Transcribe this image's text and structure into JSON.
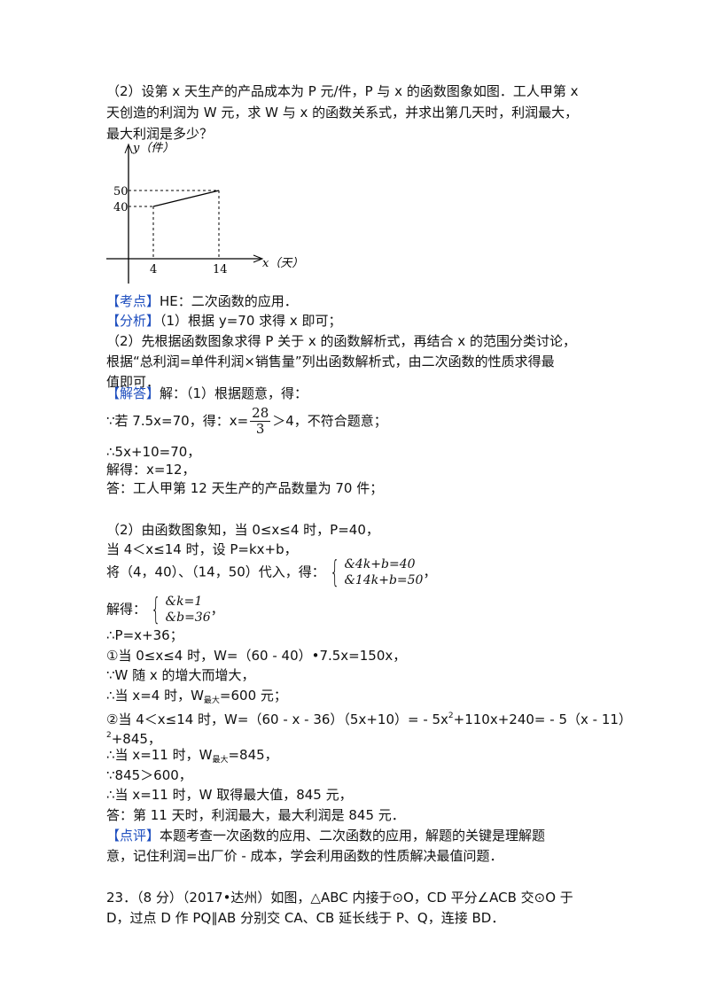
{
  "question": {
    "lines": [
      [
        "（2）设第 x 天生产的产品成本为 P 元/件，P 与 x 的函数图象如图．工人甲第 x"
      ],
      [
        "天创造的利润为 W 元，求 W 与 x 的函数关系式，并求出第几天时，利润最大，"
      ],
      [
        "最大利润是多少？"
      ]
    ]
  },
  "figure": {
    "y_label": "y（件）",
    "x_label": "x（天）",
    "y_ticks": [
      "50",
      "40"
    ],
    "x_ticks": [
      "4",
      "14"
    ]
  },
  "answer": {
    "lines": [
      [
        "【考点】",
        "HE：二次函数的应用．"
      ],
      [
        "【分析】",
        "（1）根据 y=70 求得 x 即可；"
      ],
      [
        "（2）先根据函数图象求得 P 关于 x 的函数解析式，再结合 x 的范围分类讨论，"
      ],
      [
        "根据“总利润=单件利润×销售量”列出函数解析式，由二次函数的性质求得最"
      ],
      [
        "值即可．"
      ],
      [
        "【解答】",
        "解：（1）根据题意，得："
      ],
      [
        "∵若 7.5x=70，得：x=",
        "28",
        "3",
        "＞4，不符合题意；"
      ],
      [
        "∴5x+10=70，"
      ],
      [
        "解得：x=12，"
      ],
      [
        "答：工人甲第 12 天生产的产品数量为 70 件；"
      ],
      [
        "（2）由函数图象知，当 0≤x≤4 时，P=40，"
      ],
      [
        "当 4＜x≤14 时，设 P=kx+b，"
      ],
      [
        "将（4，40）、（14，50）代入，得：",
        "&4k+b=40",
        "&14k+b=50",
        "，"
      ],
      [
        "解得：",
        "&k=1",
        "&b=36",
        "，"
      ],
      [
        "∴P=x+36；"
      ],
      [
        "①当 0≤x≤4 时，W=（60 - 40）•7.5x=150x，"
      ],
      [
        "∵W 随 x 的增大而增大，"
      ],
      [
        "∴当 x=4 时，W",
        "最大",
        "=600 元；"
      ],
      [
        "②当 4＜x≤14 时，W=（60 - x - 36）（5x+10）= - 5x",
        "2",
        "+110x+240= - 5（x - 11）"
      ],
      [
        "2",
        "+845，"
      ],
      [
        "∴当 x=11 时，W",
        "最大",
        "=845，"
      ],
      [
        "∵845＞600，"
      ],
      [
        "∴当 x=11 时，W 取得最大值，845 元，"
      ],
      [
        "答：第 11 天时，利润最大，最大利润是 845 元．"
      ],
      [
        "【点评】",
        "本题考查一次函数的应用、二次函数的应用，解题的关键是理解题"
      ],
      [
        "意，记住利润=出厂价 - 成本，学会利用函数的性质解决最值问题．"
      ]
    ]
  },
  "next_question": {
    "lines": [
      [
        "23．（8 分）（2017•达州）如图，△ABC 内接于⊙O，CD 平分∠ACB 交⊙O 于"
      ],
      [
        "D，过点 D 作 PQ∥AB 分别交 CA、CB 延长线于 P、Q，连接 BD．"
      ]
    ]
  }
}
